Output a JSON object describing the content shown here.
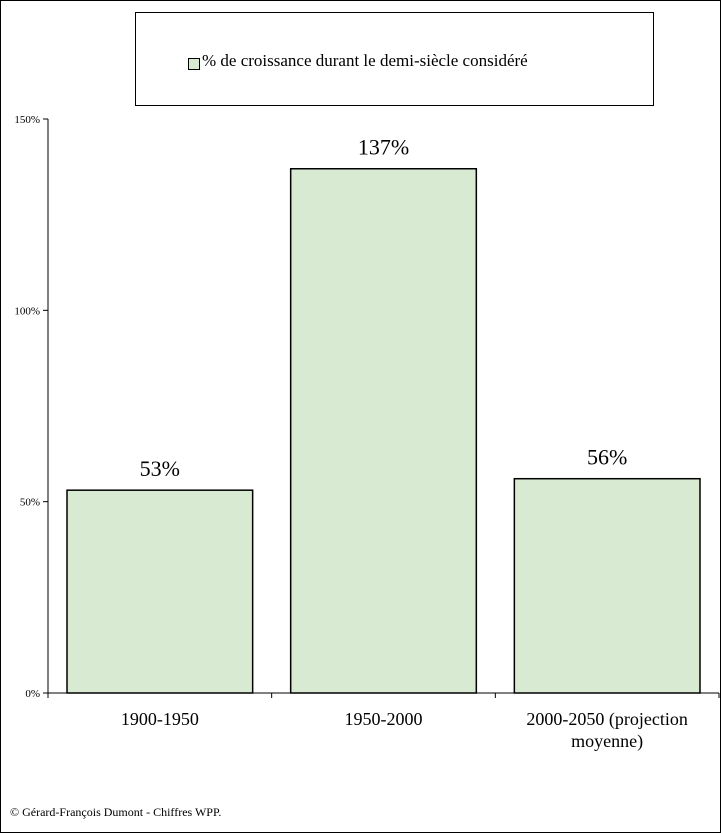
{
  "chart_data": {
    "type": "bar",
    "categories": [
      [
        "1900-1950"
      ],
      [
        "1950-2000"
      ],
      [
        "2000-2050 (projection",
        "moyenne)"
      ]
    ],
    "values": [
      53,
      137,
      56
    ],
    "data_labels": [
      "53%",
      "137%",
      "56%"
    ],
    "series": [
      {
        "name": "% de croissance durant le demi-siècle considéré",
        "values": [
          53,
          137,
          56
        ]
      }
    ],
    "y_ticks": [
      0,
      50,
      100,
      150
    ],
    "y_tick_labels": [
      "0%",
      "50%",
      "100%",
      "150%"
    ],
    "ylim": [
      0,
      150
    ],
    "title": "",
    "xlabel": "",
    "ylabel": "",
    "grid": false,
    "legend_position": "top",
    "bar_color": "#d9ead3",
    "bar_border_color": "#000000"
  },
  "legend": {
    "label": "% de croissance durant le demi-siècle considéré"
  },
  "source": "© Gérard-François Dumont - Chiffres WPP."
}
